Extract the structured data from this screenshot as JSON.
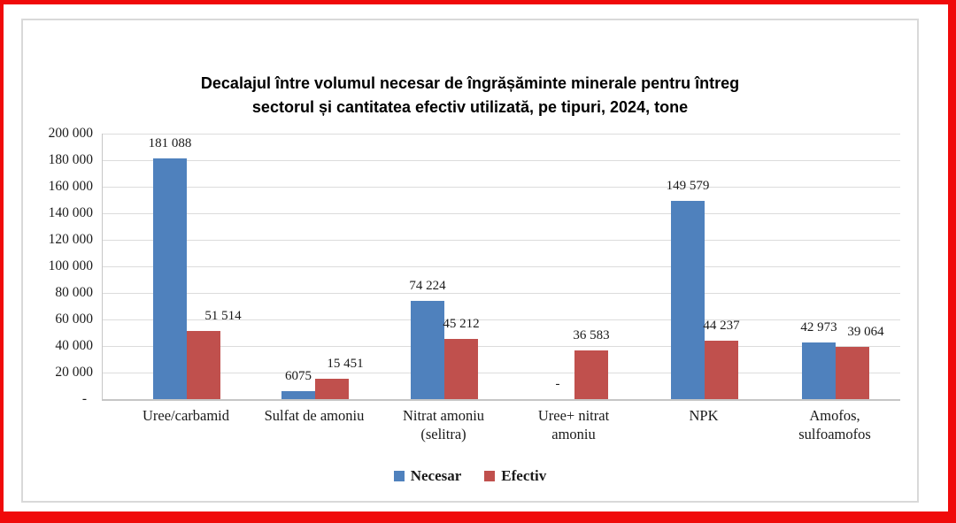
{
  "chart_data": {
    "type": "bar",
    "title": "Decalajul între volumul necesar de îngrășăminte minerale pentru întreg sectorul și cantitatea efectiv utilizată, pe tipuri, 2024, tone",
    "title_lines": [
      "Decalajul între volumul necesar de îngrășăminte minerale pentru întreg",
      "sectorul și cantitatea efectiv utilizată, pe tipuri, 2024, tone"
    ],
    "categories": [
      "Uree/carbamid",
      "Sulfat de amoniu",
      "Nitrat amoniu (selitra)",
      "Uree+ nitrat amoniu",
      "NPK",
      "Amofos, sulfoamofos"
    ],
    "category_lines": [
      [
        "Uree/carbamid"
      ],
      [
        "Sulfat de amoniu"
      ],
      [
        "Nitrat amoniu",
        "(selitra)"
      ],
      [
        "Uree+ nitrat",
        "amoniu"
      ],
      [
        "NPK"
      ],
      [
        "Amofos,",
        "sulfoamofos"
      ]
    ],
    "series": [
      {
        "name": "Necesar",
        "color": "#4F81BD",
        "values": [
          181088,
          6075,
          74224,
          null,
          149579,
          42973
        ],
        "labels": [
          "181 088",
          "6075",
          "74 224",
          "-",
          "149 579",
          "42 973"
        ]
      },
      {
        "name": "Efectiv",
        "color": "#C0504D",
        "values": [
          51514,
          15451,
          45212,
          36583,
          44237,
          39064
        ],
        "labels": [
          "51 514",
          "15 451",
          "45 212",
          "36 583",
          "44 237",
          "39 064"
        ]
      }
    ],
    "y_ticks": [
      "200 000",
      "180 000",
      "160 000",
      "140 000",
      "120 000",
      "100 000",
      "80 000",
      "60 000",
      "40 000",
      "20 000",
      "-"
    ],
    "ylim": [
      0,
      200000
    ],
    "y_step": 20000,
    "grid": true,
    "legend_position": "bottom",
    "unit": "tone"
  },
  "colors": {
    "frame_border": "#F00A0A",
    "chart_border": "#D9D9D9",
    "gridline": "#DCDCDC",
    "text": "#1A1A1A"
  }
}
